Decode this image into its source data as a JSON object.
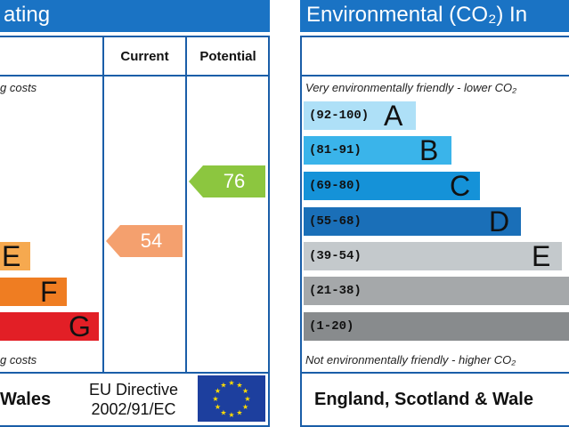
{
  "left_panel": {
    "title_fragment": "ating",
    "header_current": "Current",
    "header_potential": "Potential",
    "top_caption_fragment": "g costs",
    "bottom_caption_fragment": "g costs",
    "footer_fragment": "Wales",
    "directive_line1": "EU Directive",
    "directive_line2": "2002/91/EC"
  },
  "right_panel": {
    "title_fragment": "Environmental (CO₂) In",
    "top_caption": "Very environmentally friendly - lower CO₂",
    "bottom_caption": "Not environmentally friendly - higher CO₂",
    "footer": "England, Scotland & Wale"
  },
  "colors": {
    "header_blue": "#1a73c4",
    "border_blue": "#1a5ea8",
    "current_arrow": "#f4a06e",
    "potential_arrow": "#8cc63f"
  },
  "chart_data": [
    {
      "type": "bar",
      "chart": "energy-efficiency-rating (partial)",
      "bands": [
        {
          "letter": "E",
          "color": "#f6a94f"
        },
        {
          "letter": "F",
          "color": "#ef7d22"
        },
        {
          "letter": "G",
          "color": "#e21f26"
        }
      ],
      "current": 54,
      "potential": 76
    },
    {
      "type": "bar",
      "chart": "environmental-impact-rating (partial)",
      "bands": [
        {
          "range": "(92-100)",
          "letter": "A",
          "color": "#aee0f7"
        },
        {
          "range": "(81-91)",
          "letter": "B",
          "color": "#3ab4ea"
        },
        {
          "range": "(69-80)",
          "letter": "C",
          "color": "#1592d8"
        },
        {
          "range": "(55-68)",
          "letter": "D",
          "color": "#1a6fb8"
        },
        {
          "range": "(39-54)",
          "letter": "E",
          "color": "#c4c9cc"
        },
        {
          "range": "(21-38)",
          "letter": "",
          "color": "#a5a8aa"
        },
        {
          "range": "(1-20)",
          "letter": "",
          "color": "#888b8d"
        }
      ]
    }
  ]
}
